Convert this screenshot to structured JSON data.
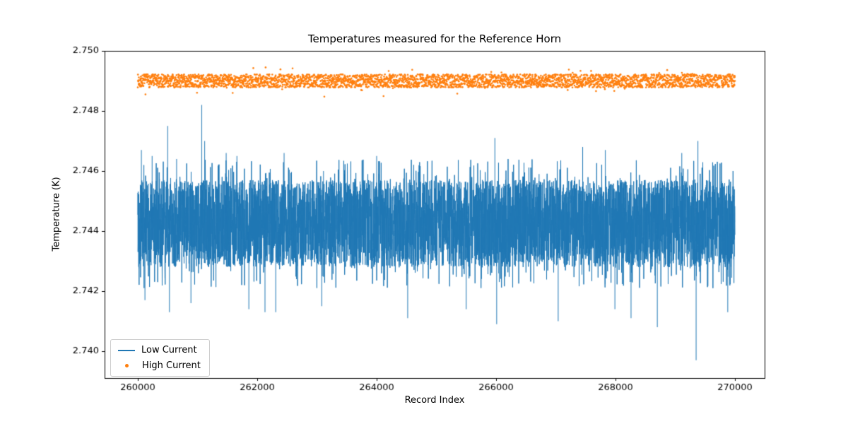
{
  "chart": {
    "title": "Temperatures measured for the Reference Horn",
    "xlabel": "Record Index",
    "ylabel": "Temperature (K)",
    "legend": [
      {
        "label": "Low Current",
        "marker": "line",
        "color": "#1f77b4"
      },
      {
        "label": "High Current",
        "marker": "dot",
        "color": "#ff7f0e"
      }
    ]
  },
  "chart_data": {
    "type": "line+scatter",
    "title": "Temperatures measured for the Reference Horn",
    "xlabel": "Record Index",
    "ylabel": "Temperature (K)",
    "x_range": [
      260000,
      270000
    ],
    "x_ticks": [
      260000,
      262000,
      264000,
      266000,
      268000,
      270000
    ],
    "x_tick_labels": [
      "260000",
      "262000",
      "264000",
      "266000",
      "268000",
      "270000"
    ],
    "y_ticks": [
      2.74,
      2.742,
      2.744,
      2.746,
      2.748,
      2.75
    ],
    "y_tick_labels": [
      "2.740",
      "2.742",
      "2.744",
      "2.746",
      "2.748",
      "2.750"
    ],
    "grid": false,
    "legend_position": "lower left",
    "series": [
      {
        "name": "Low Current",
        "type": "line",
        "color": "#1f77b4",
        "seed": 42,
        "points": 6000,
        "mean": 2.74425,
        "noise_half_width": 0.00145,
        "upward_spikes": [
          [
            260060,
            2.7467
          ],
          [
            260240,
            2.7465
          ],
          [
            260500,
            2.7475
          ],
          [
            260650,
            2.7464
          ],
          [
            261070,
            2.7482
          ],
          [
            261120,
            2.747
          ],
          [
            261480,
            2.7466
          ],
          [
            261660,
            2.7465
          ],
          [
            262450,
            2.7466
          ],
          [
            263110,
            2.746
          ],
          [
            264000,
            2.7465
          ],
          [
            264790,
            2.7459
          ],
          [
            265980,
            2.7471
          ],
          [
            266720,
            2.7459
          ],
          [
            267450,
            2.7468
          ],
          [
            267830,
            2.7467
          ],
          [
            269110,
            2.7466
          ],
          [
            269380,
            2.747
          ]
        ],
        "downward_spikes": [
          [
            260120,
            2.7417
          ],
          [
            260530,
            2.7413
          ],
          [
            260890,
            2.7416
          ],
          [
            261860,
            2.7414
          ],
          [
            262130,
            2.7413
          ],
          [
            262310,
            2.7413
          ],
          [
            263080,
            2.7415
          ],
          [
            264520,
            2.7411
          ],
          [
            265500,
            2.7414
          ],
          [
            266010,
            2.7409
          ],
          [
            267040,
            2.741
          ],
          [
            267990,
            2.7414
          ],
          [
            268260,
            2.7411
          ],
          [
            268700,
            2.7408
          ],
          [
            269350,
            2.7397
          ],
          [
            269880,
            2.7413
          ]
        ]
      },
      {
        "name": "High Current",
        "type": "scatter",
        "color": "#ff7f0e",
        "seed": 7,
        "points": 3500,
        "mean": 2.749,
        "noise_half_width": 0.00022,
        "marker_size": 1.3,
        "upward_spikes": [],
        "downward_spikes": []
      }
    ]
  }
}
